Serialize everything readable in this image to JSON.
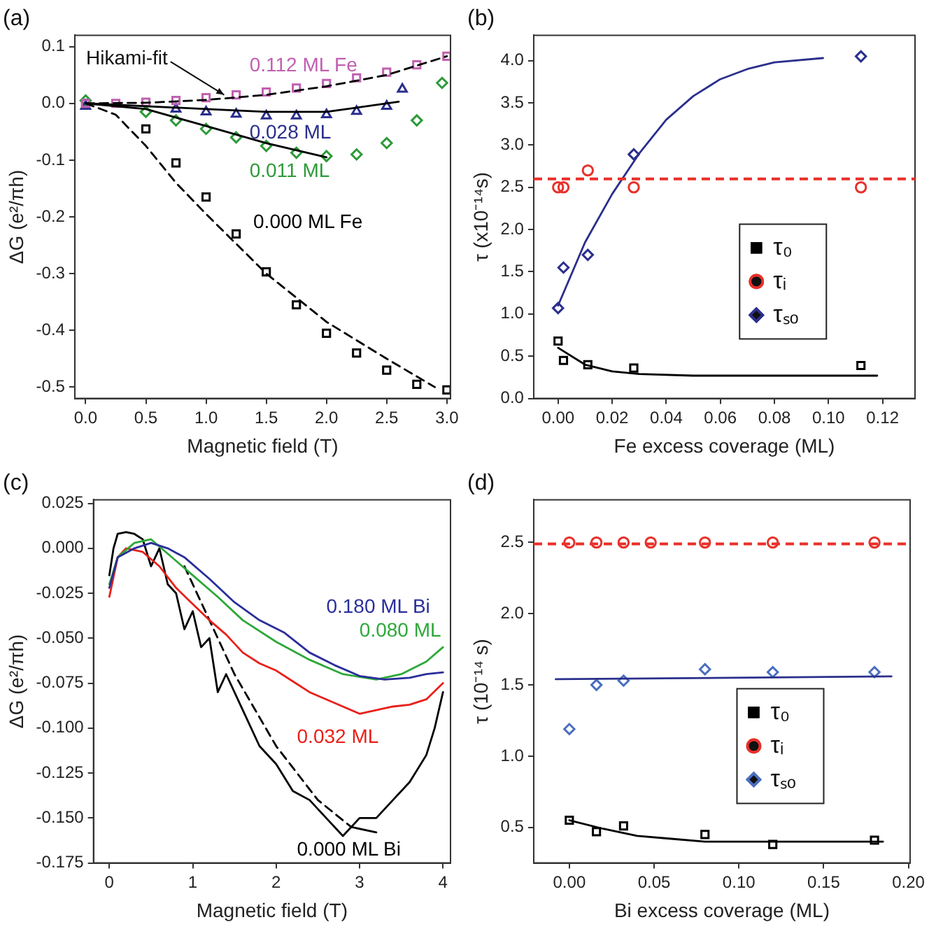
{
  "chart_data": [
    {
      "type": "scatter",
      "title": "(a)",
      "xlabel": "Magnetic field (T)",
      "ylabel": "ΔG (e²/πh)",
      "xlim": [
        -0.09,
        3.03
      ],
      "ylim": [
        -0.52,
        0.12
      ],
      "xticks": [
        {
          "value": 0,
          "label": "0.0"
        },
        {
          "value": 0.5,
          "label": "0.5"
        },
        {
          "value": 1,
          "label": "1.0"
        },
        {
          "value": 1.5,
          "label": "1.5"
        },
        {
          "value": 2,
          "label": "2.0"
        },
        {
          "value": 2.5,
          "label": "2.5"
        },
        {
          "value": 3,
          "label": "3.0"
        }
      ],
      "yticks": [
        {
          "value": -0.5,
          "label": "-0.5"
        },
        {
          "value": -0.4,
          "label": "-0.4"
        },
        {
          "value": -0.3,
          "label": "-0.3"
        },
        {
          "value": -0.2,
          "label": "-0.2"
        },
        {
          "value": -0.1,
          "label": "-0.1"
        },
        {
          "value": 0,
          "label": "0.0"
        },
        {
          "value": 0.1,
          "label": "0.1"
        }
      ],
      "annotations": [
        {
          "text": "Hikami-fit",
          "x": 1.15,
          "y": 0.015
        }
      ],
      "series": [
        {
          "name": "0.112 ML Fe",
          "color": "#c060b0",
          "marker": "square",
          "x": [
            0,
            0.25,
            0.5,
            0.75,
            1.0,
            1.25,
            1.5,
            1.75,
            2.0,
            2.25,
            2.5,
            2.75,
            3.0
          ],
          "values": [
            0,
            0,
            0.002,
            0.005,
            0.01,
            0.015,
            0.02,
            0.027,
            0.035,
            0.045,
            0.055,
            0.068,
            0.083
          ]
        },
        {
          "name": "0.028 ML",
          "color": "#2a2e8c",
          "marker": "triangle",
          "x": [
            0,
            0.75,
            1.0,
            1.25,
            1.5,
            1.75,
            2.0,
            2.25,
            2.5,
            2.63
          ],
          "values": [
            -0.005,
            -0.01,
            -0.015,
            -0.019,
            -0.022,
            -0.022,
            -0.02,
            -0.014,
            -0.005,
            0.025
          ]
        },
        {
          "name": "0.011 ML",
          "color": "#2e9a3a",
          "marker": "diamond",
          "x": [
            0,
            0.5,
            0.75,
            1.0,
            1.25,
            1.5,
            1.75,
            2.0,
            2.25,
            2.5,
            2.75,
            2.96
          ],
          "values": [
            0.005,
            -0.015,
            -0.03,
            -0.045,
            -0.06,
            -0.075,
            -0.087,
            -0.093,
            -0.09,
            -0.07,
            -0.03,
            0.036
          ]
        },
        {
          "name": "0.000 ML Fe",
          "color": "#000000",
          "marker": "square",
          "x": [
            0,
            0.5,
            0.75,
            1.0,
            1.25,
            1.5,
            1.75,
            2.0,
            2.25,
            2.5,
            2.75,
            3.0
          ],
          "values": [
            0,
            -0.045,
            -0.105,
            -0.165,
            -0.23,
            -0.297,
            -0.355,
            -0.405,
            -0.44,
            -0.47,
            -0.495,
            -0.505
          ]
        },
        {
          "type": "line",
          "color": "#000000",
          "line_style": "dashed",
          "x": [
            0,
            0.5,
            1.0,
            1.5,
            2.0,
            2.5,
            3.0
          ],
          "values": [
            0,
            0.001,
            0.006,
            0.015,
            0.03,
            0.05,
            0.083
          ]
        },
        {
          "type": "line",
          "color": "#000000",
          "line_style": "solid",
          "x": [
            0,
            1.0,
            1.5,
            2.0,
            2.6
          ],
          "values": [
            0,
            -0.01,
            -0.015,
            -0.015,
            0.003
          ]
        },
        {
          "type": "line",
          "color": "#000000",
          "line_style": "solid",
          "x": [
            0,
            0.5,
            1.0,
            1.5,
            2.0
          ],
          "values": [
            0,
            -0.01,
            -0.04,
            -0.07,
            -0.095
          ]
        },
        {
          "type": "line",
          "color": "#000000",
          "line_style": "dashed",
          "x": [
            0,
            0.25,
            0.5,
            0.75,
            1.0,
            1.5,
            2.0,
            2.5,
            2.9
          ],
          "values": [
            0,
            -0.02,
            -0.075,
            -0.14,
            -0.195,
            -0.3,
            -0.385,
            -0.45,
            -0.5
          ]
        }
      ]
    },
    {
      "type": "scatter",
      "title": "(b)",
      "xlabel": "Fe excess coverage (ML)",
      "ylabel": "τ (x10⁻¹⁴s)",
      "xlim": [
        -0.009,
        0.132
      ],
      "ylim": [
        0,
        4.3
      ],
      "legend": "center",
      "xticks": [
        {
          "value": 0,
          "label": "0.00"
        },
        {
          "value": 0.02,
          "label": "0.02"
        },
        {
          "value": 0.04,
          "label": "0.04"
        },
        {
          "value": 0.06,
          "label": "0.06"
        },
        {
          "value": 0.08,
          "label": "0.08"
        },
        {
          "value": 0.1,
          "label": "0.10"
        },
        {
          "value": 0.12,
          "label": "0.12"
        }
      ],
      "yticks": [
        {
          "value": 0,
          "label": "0.0"
        },
        {
          "value": 0.5,
          "label": "0.5"
        },
        {
          "value": 1,
          "label": "1.0"
        },
        {
          "value": 1.5,
          "label": "1.5"
        },
        {
          "value": 2,
          "label": "2.0"
        },
        {
          "value": 2.5,
          "label": "2.5"
        },
        {
          "value": 3,
          "label": "3.0"
        },
        {
          "value": 3.5,
          "label": "3.5"
        },
        {
          "value": 4,
          "label": "4.0"
        }
      ],
      "ref_lines": [
        {
          "axis": "y",
          "value": 2.6,
          "color": "#e8302a",
          "line_style": "dashed"
        }
      ],
      "series": [
        {
          "name": "τ₀",
          "color": "#000000",
          "marker": "square",
          "x": [
            0,
            0.002,
            0.011,
            0.028,
            0.112
          ],
          "values": [
            0.68,
            0.45,
            0.4,
            0.36,
            0.39
          ]
        },
        {
          "name": "τᵢ",
          "color": "#e8302a",
          "marker": "circle",
          "x": [
            0,
            0.002,
            0.011,
            0.028,
            0.112
          ],
          "values": [
            2.5,
            2.5,
            2.7,
            2.5,
            2.5
          ]
        },
        {
          "name": "τₛₒ",
          "color": "#2b2f8c",
          "marker": "diamond",
          "x": [
            0,
            0.002,
            0.011,
            0.028,
            0.112
          ],
          "values": [
            1.07,
            1.55,
            1.7,
            2.89,
            4.05
          ]
        },
        {
          "type": "line",
          "color": "#2b2f8c",
          "line_style": "solid",
          "x": [
            0,
            0.01,
            0.02,
            0.03,
            0.04,
            0.05,
            0.06,
            0.07,
            0.08,
            0.098
          ],
          "values": [
            1.1,
            1.85,
            2.42,
            2.9,
            3.3,
            3.58,
            3.78,
            3.9,
            3.98,
            4.03
          ]
        },
        {
          "type": "line",
          "color": "#000000",
          "line_style": "solid",
          "x": [
            0,
            0.01,
            0.02,
            0.03,
            0.05,
            0.08,
            0.118
          ],
          "values": [
            0.6,
            0.4,
            0.32,
            0.29,
            0.27,
            0.27,
            0.27
          ]
        }
      ]
    },
    {
      "type": "line",
      "title": "(c)",
      "xlabel": "Magnetic field (T)",
      "ylabel": "ΔG (e²/πh)",
      "xlim": [
        -0.19,
        4.09
      ],
      "ylim": [
        -0.175,
        0.027
      ],
      "xticks": [
        0,
        1,
        2,
        3,
        4
      ],
      "yticks": [
        {
          "value": 0.025,
          "label": "0.025"
        },
        {
          "value": 0,
          "label": "0.000"
        },
        {
          "value": -0.025,
          "label": "-0.025"
        },
        {
          "value": -0.05,
          "label": "-0.050"
        },
        {
          "value": -0.075,
          "label": "-0.075"
        },
        {
          "value": -0.1,
          "label": "-0.100"
        },
        {
          "value": -0.125,
          "label": "-0.125"
        },
        {
          "value": -0.15,
          "label": "-0.150"
        },
        {
          "value": -0.175,
          "label": "-0.175"
        }
      ],
      "series": [
        {
          "name": "0.180 ML Bi",
          "color": "#2a2e9a",
          "x": [
            0,
            0.1,
            0.3,
            0.5,
            0.7,
            0.9,
            1.2,
            1.5,
            1.8,
            2.1,
            2.4,
            2.7,
            3.0,
            3.3,
            3.6,
            3.8,
            4.0
          ],
          "values": [
            -0.022,
            -0.005,
            0,
            0.003,
            0,
            -0.005,
            -0.017,
            -0.03,
            -0.04,
            -0.047,
            -0.058,
            -0.065,
            -0.071,
            -0.073,
            -0.072,
            -0.07,
            -0.069
          ]
        },
        {
          "name": "0.080 ML",
          "color": "#2ea83a",
          "x": [
            0,
            0.1,
            0.3,
            0.5,
            0.7,
            1.0,
            1.3,
            1.6,
            2.0,
            2.4,
            2.8,
            3.2,
            3.5,
            3.8,
            4.0
          ],
          "values": [
            -0.02,
            -0.005,
            0.003,
            0.005,
            -0.003,
            -0.015,
            -0.027,
            -0.04,
            -0.052,
            -0.062,
            -0.07,
            -0.073,
            -0.07,
            -0.063,
            -0.055
          ]
        },
        {
          "name": "0.032 ML",
          "color": "#e8201a",
          "x": [
            0,
            0.1,
            0.2,
            0.4,
            0.6,
            0.8,
            1.0,
            1.2,
            1.4,
            1.6,
            1.8,
            2.0,
            2.2,
            2.4,
            2.6,
            2.8,
            3.0,
            3.2,
            3.4,
            3.6,
            3.8,
            4.0
          ],
          "values": [
            -0.027,
            -0.005,
            0,
            -0.002,
            -0.01,
            -0.022,
            -0.031,
            -0.04,
            -0.048,
            -0.058,
            -0.064,
            -0.068,
            -0.074,
            -0.08,
            -0.084,
            -0.088,
            -0.092,
            -0.09,
            -0.088,
            -0.087,
            -0.084,
            -0.075
          ]
        },
        {
          "name": "0.000 ML Bi",
          "color": "#000000",
          "x": [
            0,
            0.05,
            0.1,
            0.2,
            0.3,
            0.4,
            0.5,
            0.6,
            0.7,
            0.8,
            0.9,
            1.0,
            1.1,
            1.2,
            1.3,
            1.4,
            1.6,
            1.8,
            2.0,
            2.2,
            2.4,
            2.6,
            2.8,
            3.0,
            3.2,
            3.4,
            3.6,
            3.8,
            3.9,
            4.0
          ],
          "values": [
            -0.015,
            0,
            0.008,
            0.009,
            0.008,
            0.005,
            -0.01,
            0,
            -0.02,
            -0.025,
            -0.045,
            -0.035,
            -0.055,
            -0.05,
            -0.08,
            -0.07,
            -0.09,
            -0.11,
            -0.12,
            -0.135,
            -0.14,
            -0.15,
            -0.16,
            -0.15,
            -0.15,
            -0.14,
            -0.13,
            -0.115,
            -0.1,
            -0.08
          ]
        },
        {
          "type": "line",
          "color": "#000000",
          "line_style": "dashed",
          "x": [
            0.9,
            1.0,
            1.2,
            1.5,
            2.0,
            2.5,
            2.9
          ],
          "values": [
            -0.01,
            -0.02,
            -0.04,
            -0.07,
            -0.11,
            -0.14,
            -0.155
          ]
        },
        {
          "type": "line",
          "color": "#000000",
          "line_style": "solid",
          "x": [
            2.9,
            3.2
          ],
          "values": [
            -0.155,
            -0.158
          ]
        }
      ]
    },
    {
      "type": "scatter",
      "title": "(d)",
      "xlabel": "Bi excess coverage (ML)",
      "ylabel": "τ (10⁻¹⁴ s)",
      "xlim": [
        -0.021,
        0.201
      ],
      "ylim": [
        0.25,
        2.8
      ],
      "legend": "center",
      "xticks": [
        {
          "value": 0,
          "label": "0.00"
        },
        {
          "value": 0.05,
          "label": "0.05"
        },
        {
          "value": 0.1,
          "label": "0.10"
        },
        {
          "value": 0.15,
          "label": "0.15"
        },
        {
          "value": 0.2,
          "label": "0.20"
        }
      ],
      "yticks": [
        0.5,
        {
          "value": 1,
          "label": "1.0"
        },
        1.5,
        {
          "value": 2,
          "label": "2.0"
        },
        2.5
      ],
      "ref_lines": [
        {
          "axis": "y",
          "value": 2.49,
          "color": "#e8302a",
          "line_style": "dashed"
        }
      ],
      "series": [
        {
          "name": "τ₀",
          "color": "#000000",
          "marker": "square",
          "x": [
            0,
            0.016,
            0.032,
            0.08,
            0.12,
            0.18
          ],
          "values": [
            0.55,
            0.47,
            0.51,
            0.45,
            0.38,
            0.41
          ]
        },
        {
          "name": "τᵢ",
          "color": "#e8302a",
          "marker": "circle",
          "x": [
            0,
            0.016,
            0.032,
            0.048,
            0.08,
            0.12,
            0.18
          ],
          "values": [
            2.5,
            2.5,
            2.5,
            2.5,
            2.5,
            2.5,
            2.5
          ]
        },
        {
          "name": "τₛₒ",
          "color": "#4a6fc0",
          "marker": "diamond",
          "x": [
            0,
            0.016,
            0.032,
            0.08,
            0.12,
            0.18
          ],
          "values": [
            1.19,
            1.5,
            1.53,
            1.61,
            1.59,
            1.59
          ]
        },
        {
          "type": "line",
          "color": "#2b2f8c",
          "line_style": "solid",
          "x": [
            -0.008,
            0.19
          ],
          "values": [
            1.54,
            1.56
          ]
        },
        {
          "type": "line",
          "color": "#000000",
          "line_style": "solid",
          "x": [
            0,
            0.02,
            0.04,
            0.06,
            0.08,
            0.12,
            0.185
          ],
          "values": [
            0.55,
            0.49,
            0.44,
            0.42,
            0.4,
            0.4,
            0.4
          ]
        }
      ]
    }
  ]
}
